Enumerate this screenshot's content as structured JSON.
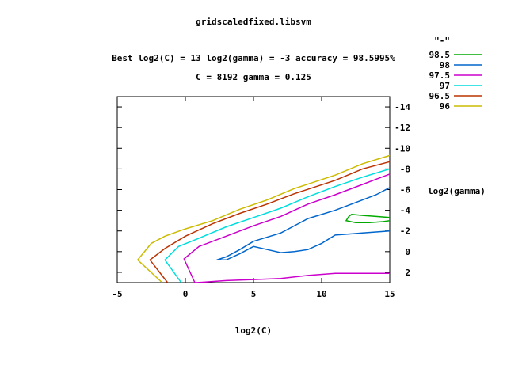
{
  "chart_data": {
    "type": "contour",
    "title": "gridscaledfixed.libsvm",
    "subtitle_line1": "Best log2(C) = 13  log2(gamma) = -3  accuracy = 98.5995%",
    "subtitle_line2": "C = 8192  gamma = 0.125",
    "xlabel": "log2(C)",
    "ylabel": "log2(gamma)",
    "xlim": [
      -5,
      15
    ],
    "ylim": [
      -15,
      3
    ],
    "y_inverted": true,
    "x_ticks": [
      -5,
      0,
      5,
      10,
      15
    ],
    "y_ticks": [
      -14,
      -12,
      -10,
      -8,
      -6,
      -4,
      -2,
      0,
      2
    ],
    "y_axis_side": "right",
    "legend_title": "\"-\"",
    "legend_position": "top-right",
    "grid": false,
    "series": [
      {
        "name": "98.5",
        "color": "#00aa00",
        "segments": [
          [
            [
              13.0,
              -3.5
            ],
            [
              12.2,
              -3.6
            ],
            [
              12.0,
              -3.4
            ],
            [
              11.8,
              -3.0
            ],
            [
              12.5,
              -2.8
            ],
            [
              13.5,
              -2.8
            ],
            [
              14.5,
              -2.9
            ],
            [
              15.0,
              -3.0
            ]
          ],
          [
            [
              13.0,
              -3.5
            ],
            [
              14.0,
              -3.4
            ],
            [
              15.0,
              -3.3
            ]
          ]
        ]
      },
      {
        "name": "98",
        "color": "#0066cc",
        "segments": [
          [
            [
              2.3,
              0.8
            ],
            [
              3.0,
              0.5
            ],
            [
              4.0,
              -0.2
            ],
            [
              5.0,
              -1.0
            ],
            [
              7.0,
              -1.8
            ],
            [
              9.0,
              -3.2
            ],
            [
              11.0,
              -4.0
            ],
            [
              13.0,
              -5.0
            ],
            [
              14.0,
              -5.5
            ],
            [
              15.0,
              -6.2
            ]
          ],
          [
            [
              2.3,
              0.8
            ],
            [
              3.0,
              0.8
            ],
            [
              4.0,
              0.2
            ],
            [
              5.0,
              -0.5
            ],
            [
              6.0,
              -0.2
            ],
            [
              7.0,
              0.1
            ],
            [
              8.0,
              0.0
            ],
            [
              9.0,
              -0.2
            ],
            [
              10.0,
              -0.8
            ],
            [
              11.0,
              -1.6
            ],
            [
              12.0,
              -1.7
            ],
            [
              13.0,
              -1.8
            ],
            [
              14.0,
              -1.9
            ],
            [
              15.0,
              -2.0
            ]
          ]
        ]
      },
      {
        "name": "97.5",
        "color": "#cc00cc",
        "segments": [
          [
            [
              0.7,
              3.0
            ],
            [
              -0.1,
              0.7
            ],
            [
              1.0,
              -0.5
            ],
            [
              3.0,
              -1.5
            ],
            [
              5.0,
              -2.5
            ],
            [
              7.0,
              -3.4
            ],
            [
              9.0,
              -4.6
            ],
            [
              11.0,
              -5.5
            ],
            [
              13.0,
              -6.5
            ],
            [
              14.0,
              -7.0
            ],
            [
              15.0,
              -7.5
            ]
          ],
          [
            [
              0.8,
              3.0
            ],
            [
              3.0,
              2.8
            ],
            [
              5.0,
              2.7
            ],
            [
              7.0,
              2.6
            ],
            [
              9.0,
              2.3
            ],
            [
              11.0,
              2.1
            ],
            [
              13.0,
              2.1
            ],
            [
              15.0,
              2.1
            ]
          ]
        ]
      },
      {
        "name": "97",
        "color": "#00dddd",
        "segments": [
          [
            [
              -0.3,
              3.0
            ],
            [
              -1.5,
              0.8
            ],
            [
              -0.5,
              -0.5
            ],
            [
              1.0,
              -1.3
            ],
            [
              3.0,
              -2.4
            ],
            [
              5.0,
              -3.3
            ],
            [
              7.0,
              -4.2
            ],
            [
              9.0,
              -5.3
            ],
            [
              11.0,
              -6.3
            ],
            [
              13.0,
              -7.2
            ],
            [
              15.0,
              -8.0
            ]
          ]
        ]
      },
      {
        "name": "96.5",
        "color": "#bb3300",
        "segments": [
          [
            [
              -1.3,
              3.0
            ],
            [
              -2.6,
              0.8
            ],
            [
              -1.5,
              -0.3
            ],
            [
              0.0,
              -1.5
            ],
            [
              2.0,
              -2.7
            ],
            [
              4.0,
              -3.7
            ],
            [
              6.0,
              -4.6
            ],
            [
              8.0,
              -5.6
            ],
            [
              11.0,
              -6.9
            ],
            [
              13.0,
              -8.0
            ],
            [
              15.0,
              -8.7
            ]
          ]
        ]
      },
      {
        "name": "96",
        "color": "#ccbb00",
        "segments": [
          [
            [
              -1.7,
              3.0
            ],
            [
              -3.5,
              0.8
            ],
            [
              -2.5,
              -0.8
            ],
            [
              -1.5,
              -1.5
            ],
            [
              0.0,
              -2.2
            ],
            [
              2.0,
              -3.0
            ],
            [
              4.0,
              -4.1
            ],
            [
              6.0,
              -5.0
            ],
            [
              8.0,
              -6.1
            ],
            [
              11.0,
              -7.4
            ],
            [
              13.0,
              -8.5
            ],
            [
              15.0,
              -9.3
            ]
          ]
        ]
      }
    ]
  }
}
